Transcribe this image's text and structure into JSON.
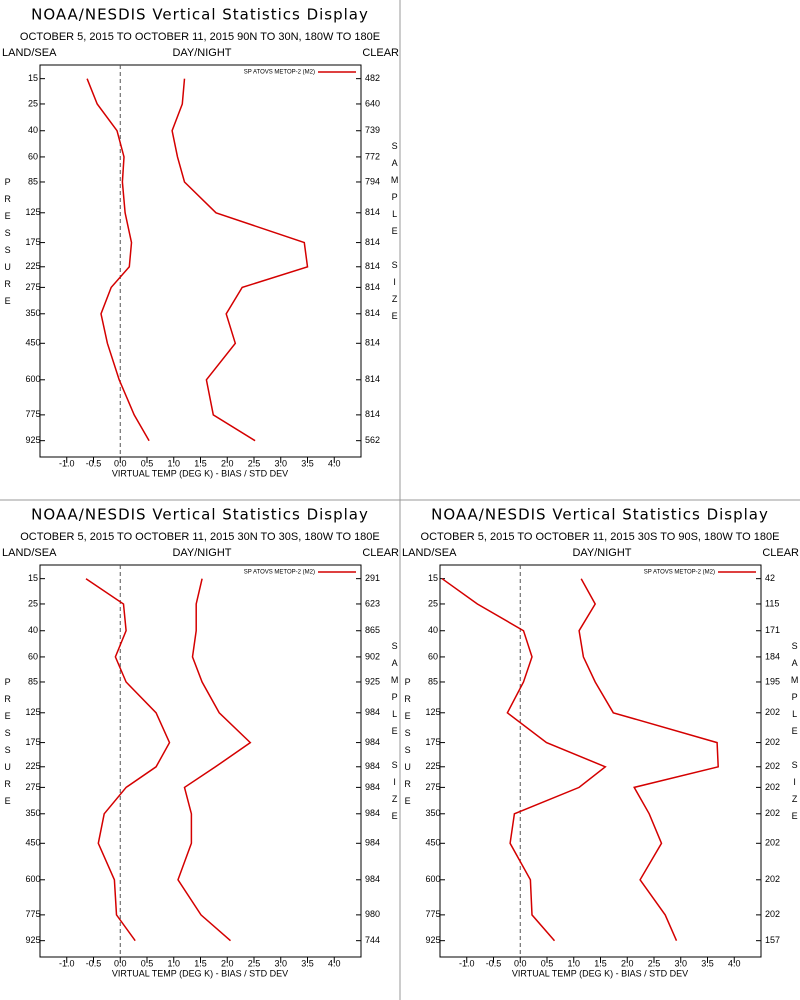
{
  "chart_data": [
    {
      "type": "line",
      "title": "NOAA/NESDIS Vertical Statistics Display",
      "subtitle": "OCTOBER 5, 2015 TO OCTOBER 11, 2015 90N TO 30N, 180W TO 180E",
      "left_label": "LAND/SEA",
      "center_label": "DAY/NIGHT",
      "right_label": "CLEAR",
      "ylabel": "PRESSURE",
      "y2label": "SAMPLE SIZE",
      "xlabel": "VIRTUAL TEMP (DEG K) - BIAS / STD DEV",
      "y": [
        15,
        25,
        40,
        60,
        85,
        125,
        175,
        225,
        275,
        350,
        450,
        600,
        775,
        925
      ],
      "ylim": [
        11,
        1030
      ],
      "y_power": 0.286,
      "xlim": [
        -1.5,
        4.5
      ],
      "xticks": [
        {
          "value": -1,
          "label": "-1.0"
        },
        {
          "value": -0.5,
          "label": "-0.5"
        },
        {
          "value": 0,
          "label": "0.0"
        },
        {
          "value": 0.5,
          "label": "0.5"
        },
        {
          "value": 1,
          "label": "1.0"
        },
        {
          "value": 1.5,
          "label": "1.5"
        },
        {
          "value": 2,
          "label": "2.0"
        },
        {
          "value": 2.5,
          "label": "2.5"
        },
        {
          "value": 3,
          "label": "3.0"
        },
        {
          "value": 3.5,
          "label": "3.5"
        },
        {
          "value": 4,
          "label": "4.0"
        }
      ],
      "vline": 0,
      "sample_sizes": [
        482,
        640,
        739,
        772,
        794,
        814,
        814,
        814,
        814,
        814,
        814,
        814,
        814,
        562
      ],
      "series": [
        {
          "name": "SP ATOVS METOP-2 (M2)",
          "color": "#d40000",
          "bias": [
            -0.62,
            -0.43,
            -0.06,
            0.07,
            0.04,
            0.09,
            0.21,
            0.17,
            -0.17,
            -0.36,
            -0.24,
            -0.02,
            0.26,
            0.54
          ],
          "std_dev": [
            1.2,
            1.16,
            0.97,
            1.07,
            1.2,
            1.79,
            3.44,
            3.5,
            2.28,
            1.98,
            2.15,
            1.61,
            1.74,
            2.52
          ]
        }
      ]
    },
    {
      "type": "line",
      "title": "NOAA/NESDIS Vertical Statistics Display",
      "subtitle": "OCTOBER 5, 2015 TO OCTOBER 11, 2015 30N TO 30S, 180W TO 180E",
      "left_label": "LAND/SEA",
      "center_label": "DAY/NIGHT",
      "right_label": "CLEAR",
      "ylabel": "PRESSURE",
      "y2label": "SAMPLE SIZE",
      "xlabel": "VIRTUAL TEMP (DEG K) - BIAS / STD DEV",
      "y": [
        15,
        25,
        40,
        60,
        85,
        125,
        175,
        225,
        275,
        350,
        450,
        600,
        775,
        925
      ],
      "ylim": [
        11,
        1030
      ],
      "y_power": 0.286,
      "xlim": [
        -1.5,
        4.5
      ],
      "xticks": [
        {
          "value": -1,
          "label": "-1.0"
        },
        {
          "value": -0.5,
          "label": "-0.5"
        },
        {
          "value": 0,
          "label": "0.0"
        },
        {
          "value": 0.5,
          "label": "0.5"
        },
        {
          "value": 1,
          "label": "1.0"
        },
        {
          "value": 1.5,
          "label": "1.5"
        },
        {
          "value": 2,
          "label": "2.0"
        },
        {
          "value": 2.5,
          "label": "2.5"
        },
        {
          "value": 3,
          "label": "3.0"
        },
        {
          "value": 3.5,
          "label": "3.5"
        },
        {
          "value": 4,
          "label": "4.0"
        }
      ],
      "vline": 0,
      "sample_sizes": [
        291,
        623,
        865,
        902,
        925,
        984,
        984,
        984,
        984,
        984,
        984,
        984,
        980,
        744
      ],
      "series": [
        {
          "name": "SP ATOVS METOP-2 (M2)",
          "color": "#d40000",
          "bias": [
            -0.64,
            0.06,
            0.11,
            -0.09,
            0.11,
            0.67,
            0.92,
            0.67,
            0.11,
            -0.3,
            -0.41,
            -0.11,
            -0.07,
            0.28
          ],
          "std_dev": [
            1.53,
            1.42,
            1.42,
            1.35,
            1.53,
            1.85,
            2.43,
            1.78,
            1.2,
            1.33,
            1.33,
            1.08,
            1.51,
            2.06
          ]
        }
      ]
    },
    {
      "type": "line",
      "title": "NOAA/NESDIS Vertical Statistics Display",
      "subtitle": "OCTOBER 5, 2015 TO OCTOBER 11, 2015 30S TO 90S, 180W TO 180E",
      "left_label": "LAND/SEA",
      "center_label": "DAY/NIGHT",
      "right_label": "CLEAR",
      "ylabel": "PRESSURE",
      "y2label": "SAMPLE SIZE",
      "xlabel": "VIRTUAL TEMP (DEG K) - BIAS / STD DEV",
      "y": [
        15,
        25,
        40,
        60,
        85,
        125,
        175,
        225,
        275,
        350,
        450,
        600,
        775,
        925
      ],
      "ylim": [
        11,
        1030
      ],
      "y_power": 0.286,
      "xlim": [
        -1.5,
        4.5
      ],
      "xticks": [
        {
          "value": -1,
          "label": "-1.0"
        },
        {
          "value": -0.5,
          "label": "-0.5"
        },
        {
          "value": 0,
          "label": "0.0"
        },
        {
          "value": 0.5,
          "label": "0.5"
        },
        {
          "value": 1,
          "label": "1.0"
        },
        {
          "value": 1.5,
          "label": "1.5"
        },
        {
          "value": 2,
          "label": "2.0"
        },
        {
          "value": 2.5,
          "label": "2.5"
        },
        {
          "value": 3,
          "label": "3.0"
        },
        {
          "value": 3.5,
          "label": "3.5"
        },
        {
          "value": 4,
          "label": "4.0"
        }
      ],
      "vline": 0,
      "sample_sizes": [
        42,
        115,
        171,
        184,
        195,
        202,
        202,
        202,
        202,
        202,
        202,
        202,
        202,
        157
      ],
      "series": [
        {
          "name": "SP ATOVS METOP-2 (M2)",
          "color": "#d40000",
          "bias": [
            -1.46,
            -0.8,
            0.06,
            0.22,
            0.06,
            -0.24,
            0.49,
            1.59,
            1.1,
            -0.11,
            -0.19,
            0.19,
            0.22,
            0.64
          ],
          "std_dev": [
            1.14,
            1.4,
            1.1,
            1.18,
            1.4,
            1.74,
            3.68,
            3.7,
            2.13,
            2.41,
            2.64,
            2.24,
            2.71,
            2.92
          ]
        }
      ]
    }
  ]
}
